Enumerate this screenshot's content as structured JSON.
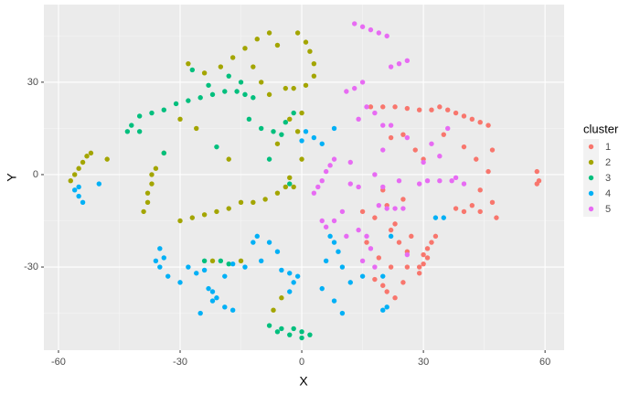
{
  "chart_data": {
    "type": "scatter",
    "xlabel": "X",
    "ylabel": "Y",
    "legend_title": "cluster",
    "legend": "right",
    "grid": true,
    "xlim": [
      -63.6,
      64.7
    ],
    "ylim": [
      -57.0,
      55.2
    ],
    "xticks": [
      -60,
      -30,
      0,
      30,
      60
    ],
    "yticks": [
      -30,
      0,
      30
    ],
    "series": [
      {
        "name": "1",
        "color": "#F8766D",
        "x": [
          17,
          20,
          23,
          26,
          29,
          32,
          34,
          36,
          38,
          40,
          42,
          44,
          46,
          29,
          30,
          30,
          31,
          32,
          33,
          29,
          31,
          58,
          58.5,
          58,
          22,
          25,
          28,
          30,
          35,
          40,
          43,
          47,
          46,
          44,
          47,
          42,
          44,
          40,
          38,
          25,
          22,
          24,
          26,
          22,
          26,
          19,
          20,
          18,
          21,
          23,
          25,
          16,
          15,
          18,
          23,
          20,
          27,
          48,
          21
        ],
        "y": [
          22,
          22,
          22,
          21.5,
          21,
          21,
          22,
          21,
          20,
          19,
          18,
          17,
          16,
          -32,
          -29,
          -26,
          -24,
          -22,
          -20,
          -30,
          -27,
          1,
          -2,
          -3,
          12,
          13,
          8,
          5,
          13,
          9,
          5,
          8,
          1,
          -5,
          -9,
          -10,
          -12,
          -12,
          -11,
          -8,
          -18,
          -22,
          -25,
          -30,
          -30,
          -27,
          -36,
          -34,
          -38,
          -40,
          -35,
          -22,
          -12,
          -14,
          -16,
          -5,
          -20,
          -14,
          -10
        ]
      },
      {
        "name": "2",
        "color": "#A3A500",
        "x": [
          -57,
          -56,
          -55,
          -54,
          -53,
          -52,
          -48,
          -39,
          -38,
          -38,
          -37,
          -37,
          -36,
          -30,
          -27,
          -24,
          -21,
          -18,
          -15,
          -12,
          -9,
          -6,
          -4,
          -3,
          -20,
          -17,
          -14,
          -11,
          -8,
          -24,
          -28,
          -1,
          1,
          2,
          3,
          3,
          1,
          -2,
          -4,
          -10,
          -8,
          -12,
          -6,
          -3,
          -1,
          0,
          -6,
          -18,
          -30,
          -26,
          -34,
          -22,
          -5,
          -7,
          -15,
          0,
          -2
        ],
        "y": [
          -2,
          0,
          2,
          4,
          6,
          7,
          5,
          -12,
          -9,
          -6,
          -3,
          0,
          2,
          -15,
          -14,
          -13,
          -12,
          -11,
          -9,
          -9,
          -8,
          -6,
          -4,
          -1,
          35,
          38,
          41,
          44,
          46,
          33,
          36,
          46,
          43,
          40,
          36,
          32,
          29,
          28,
          28,
          30,
          26,
          35,
          42,
          18,
          14,
          20,
          10,
          5,
          18,
          15,
          7,
          -28,
          -40,
          -44,
          -28,
          5,
          -4
        ]
      },
      {
        "name": "3",
        "color": "#00BF7D",
        "x": [
          -43,
          -42,
          -40,
          -37,
          -34,
          -31,
          -28,
          -25,
          -22,
          -19,
          -16,
          -14,
          -12,
          -27,
          -23,
          -18,
          -15,
          -21,
          -13,
          -10,
          -7,
          -5,
          -4,
          -2,
          -8,
          -34,
          -24,
          -20,
          -18,
          -40,
          -8,
          -5,
          -2,
          0,
          2,
          0,
          -3,
          -6,
          -3
        ],
        "y": [
          14,
          16,
          19,
          20,
          21,
          23,
          24,
          25,
          26,
          27,
          27,
          26,
          25,
          34,
          29,
          32,
          30,
          9,
          18,
          15,
          14,
          13,
          17,
          20,
          5,
          7,
          -28,
          -28,
          -29,
          14,
          -49,
          -50,
          -50,
          -51,
          -52,
          -53,
          -52,
          -51,
          -3
        ]
      },
      {
        "name": "4",
        "color": "#00B0F6",
        "x": [
          -55,
          -55,
          -56,
          -54,
          -50,
          -35,
          -34,
          -35,
          -36,
          -33,
          -23,
          -21,
          -19,
          -17,
          -22,
          -19,
          -14,
          -12,
          -11,
          -8,
          -6,
          -3,
          -2,
          -3,
          -1,
          -5,
          -28,
          -26,
          -17,
          -24,
          -30,
          -10,
          1,
          0,
          3,
          5,
          8,
          7,
          8,
          9,
          6,
          10,
          12,
          8,
          5,
          10,
          20,
          21,
          20,
          33,
          35,
          15,
          22,
          -22,
          -25
        ],
        "y": [
          -4,
          -7,
          -5,
          -9,
          -3,
          -24,
          -27,
          -30,
          -28,
          -33,
          -37,
          -40,
          -43,
          -44,
          -41,
          -33,
          -30,
          -22,
          -20,
          -22,
          -25,
          -32,
          -35,
          -38,
          -33,
          -31,
          -30,
          -32,
          -29,
          -31,
          -35,
          -28,
          14,
          11,
          12,
          10,
          15,
          -20,
          -22,
          -25,
          -28,
          -30,
          -35,
          -41,
          -37,
          -45,
          -44,
          -43,
          -33,
          -14,
          -14,
          -33,
          -20,
          -38,
          -45
        ]
      },
      {
        "name": "5",
        "color": "#E76BF3",
        "x": [
          13,
          15,
          17,
          19,
          21,
          22,
          24,
          26,
          11,
          13,
          15,
          3,
          4,
          5,
          6,
          7,
          8,
          10,
          8,
          6,
          5,
          19,
          21,
          23,
          25,
          29,
          31,
          34,
          37,
          40,
          16,
          18,
          14,
          20,
          22,
          26,
          20,
          18,
          14,
          12,
          20,
          24,
          30,
          34,
          32,
          12,
          16,
          17,
          15,
          18,
          14,
          36,
          38,
          11,
          26
        ],
        "y": [
          49,
          48,
          47,
          46,
          45,
          35,
          36,
          37,
          27,
          28,
          30,
          -6,
          -4,
          -2,
          1,
          3,
          5,
          -12,
          -15,
          -17,
          -15,
          -10,
          -11,
          -11,
          -11,
          -3,
          -2,
          -2,
          -2,
          -3,
          22,
          20,
          18,
          16,
          16,
          12,
          8,
          0,
          -4,
          -3,
          -4,
          -2,
          4,
          6,
          10,
          4,
          -20,
          -24,
          -28,
          -30,
          -18,
          15,
          -1,
          -20,
          -26
        ]
      }
    ]
  }
}
